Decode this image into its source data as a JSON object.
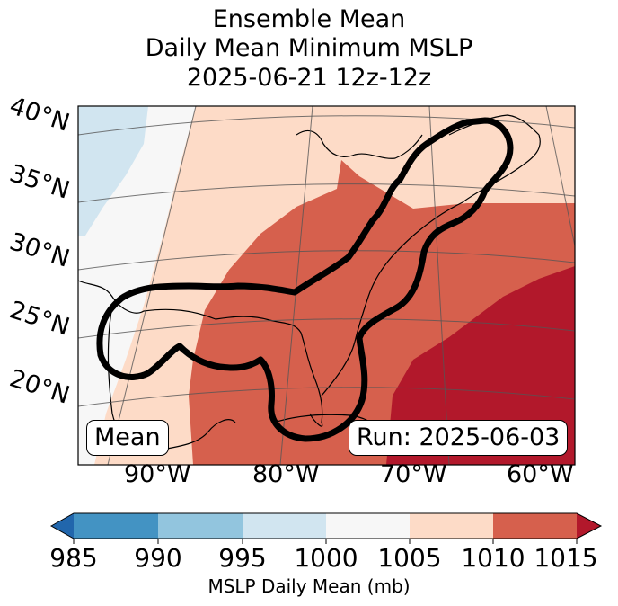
{
  "title": {
    "line1": "Ensemble Mean",
    "line2": "Daily Mean Minimum MSLP",
    "line3": "2025-06-21 12z-12z"
  },
  "map": {
    "lat_labels": [
      "40°N",
      "35°N",
      "30°N",
      "25°N",
      "20°N"
    ],
    "lon_labels": [
      "90°W",
      "80°W",
      "70°W",
      "60°W"
    ],
    "mean_label": "Mean",
    "run_label": "Run: 2025-06-03"
  },
  "colorbar": {
    "ticks": [
      "985",
      "990",
      "995",
      "1000",
      "1005",
      "1010",
      "1015"
    ],
    "label": "MSLP Daily Mean (mb)",
    "colors": {
      "below_985": "#2166ac",
      "985_990": "#4393c3",
      "990_995": "#92c5de",
      "995_1000": "#d1e5f0",
      "1000_1005": "#f7f7f7",
      "1005_1010": "#fddbc7",
      "1010_1015": "#d6604d",
      "above_1015": "#b2182b"
    }
  }
}
